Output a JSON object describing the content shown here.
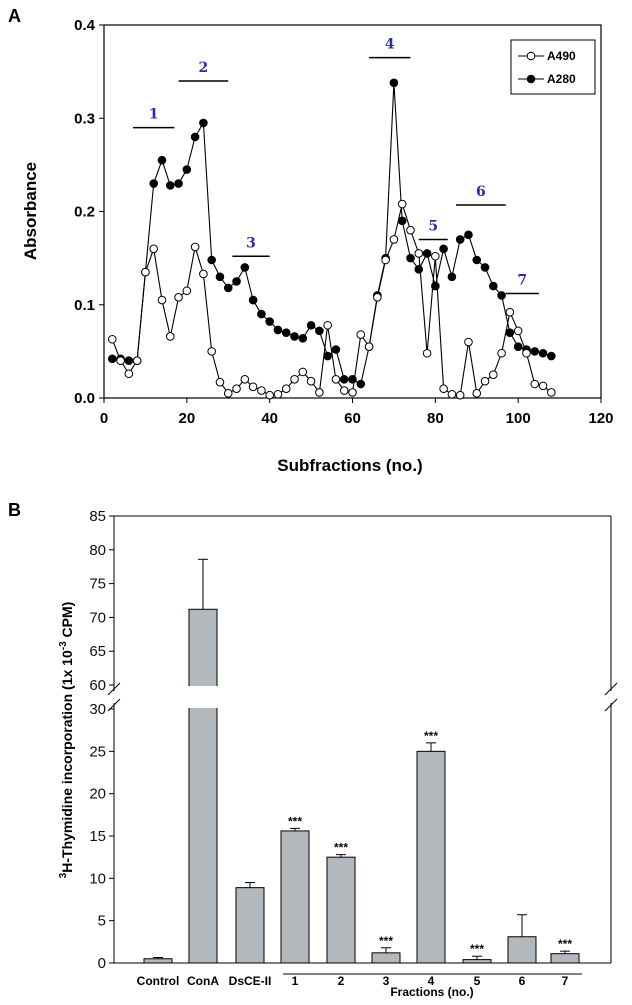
{
  "chart_data": [
    {
      "panel": "A",
      "type": "line",
      "xlabel": "Subfractions (no.)",
      "ylabel": "Absorbance",
      "xlim": [
        0,
        120
      ],
      "ylim": [
        0,
        0.4
      ],
      "xticks": [
        0,
        20,
        40,
        60,
        80,
        100,
        120
      ],
      "yticks": [
        "0.0",
        "0.1",
        "0.2",
        "0.3",
        "0.4"
      ],
      "legend_position": "top-right",
      "series": [
        {
          "name": "A490",
          "marker": "open-circle",
          "color": "#000000",
          "x": [
            2,
            4,
            6,
            8,
            10,
            12,
            14,
            16,
            18,
            20,
            22,
            24,
            26,
            28,
            30,
            32,
            34,
            36,
            38,
            40,
            42,
            44,
            46,
            48,
            50,
            52,
            54,
            56,
            58,
            60,
            62,
            64,
            66,
            68,
            70,
            72,
            74,
            76,
            78,
            80,
            82,
            84,
            86,
            88,
            90,
            92,
            94,
            96,
            98,
            100,
            102,
            104,
            106,
            108
          ],
          "y": [
            0.063,
            0.04,
            0.026,
            0.04,
            0.135,
            0.16,
            0.105,
            0.066,
            0.108,
            0.115,
            0.162,
            0.133,
            0.05,
            0.017,
            0.005,
            0.01,
            0.02,
            0.012,
            0.008,
            0.003,
            0.004,
            0.01,
            0.02,
            0.028,
            0.018,
            0.006,
            0.078,
            0.02,
            0.008,
            0.006,
            0.068,
            0.055,
            0.108,
            0.148,
            0.17,
            0.208,
            0.18,
            0.155,
            0.048,
            0.152,
            0.01,
            0.004,
            0.003,
            0.06,
            0.005,
            0.018,
            0.025,
            0.048,
            0.092,
            0.072,
            0.048,
            0.015,
            0.013,
            0.006
          ]
        },
        {
          "name": "A280",
          "marker": "filled-circle",
          "color": "#000000",
          "x": [
            2,
            4,
            6,
            8,
            10,
            12,
            14,
            16,
            18,
            20,
            22,
            24,
            26,
            28,
            30,
            32,
            34,
            36,
            38,
            40,
            42,
            44,
            46,
            48,
            50,
            52,
            54,
            56,
            58,
            60,
            62,
            64,
            66,
            68,
            70,
            72,
            74,
            76,
            78,
            80,
            82,
            84,
            86,
            88,
            90,
            92,
            94,
            96,
            98,
            100,
            102,
            104,
            106,
            108
          ],
          "y": [
            0.042,
            0.042,
            0.04,
            0.04,
            0.135,
            0.23,
            0.255,
            0.228,
            0.23,
            0.245,
            0.28,
            0.295,
            0.148,
            0.13,
            0.118,
            0.125,
            0.14,
            0.105,
            0.09,
            0.082,
            0.073,
            0.07,
            0.066,
            0.064,
            0.078,
            0.072,
            0.045,
            0.052,
            0.02,
            0.02,
            0.015,
            0.055,
            0.11,
            0.15,
            0.338,
            0.19,
            0.15,
            0.138,
            0.155,
            0.12,
            0.16,
            0.13,
            0.17,
            0.175,
            0.148,
            0.14,
            0.12,
            0.11,
            0.07,
            0.055,
            0.052,
            0.05,
            0.048,
            0.045
          ]
        }
      ],
      "annotations": [
        {
          "label": "1",
          "x_start": 7,
          "x_end": 17,
          "y": 0.29
        },
        {
          "label": "2",
          "x_start": 18,
          "x_end": 30,
          "y": 0.34
        },
        {
          "label": "3",
          "x_start": 31,
          "x_end": 40,
          "y": 0.152
        },
        {
          "label": "4",
          "x_start": 64,
          "x_end": 74,
          "y": 0.365
        },
        {
          "label": "5",
          "x_start": 76,
          "x_end": 83,
          "y": 0.17
        },
        {
          "label": "6",
          "x_start": 85,
          "x_end": 97,
          "y": 0.207
        },
        {
          "label": "7",
          "x_start": 97,
          "x_end": 105,
          "y": 0.112
        }
      ]
    },
    {
      "panel": "B",
      "type": "bar",
      "ylabel_prefix": "3",
      "ylabel_main": "H-Thymidine incorporation (1x 10",
      "ylabel_exp": "-3",
      "ylabel_suffix": " CPM)",
      "broken_axis": {
        "lower": [
          0,
          30
        ],
        "upper": [
          60,
          85
        ]
      },
      "yticks_lower": [
        "0",
        "5",
        "10",
        "15",
        "20",
        "25",
        "30"
      ],
      "yticks_upper": [
        "60",
        "65",
        "70",
        "75",
        "80",
        "85"
      ],
      "categories": [
        "Control",
        "ConA",
        "DsCE-II",
        "1",
        "2",
        "3",
        "4",
        "5",
        "6",
        "7"
      ],
      "values": [
        0.5,
        71.2,
        8.9,
        15.6,
        12.5,
        1.2,
        25.0,
        0.4,
        3.1,
        1.1
      ],
      "errors": [
        0.15,
        7.4,
        0.6,
        0.3,
        0.3,
        0.6,
        1.0,
        0.4,
        2.6,
        0.3
      ],
      "significance": [
        "",
        "",
        "",
        "***",
        "***",
        "***",
        "***",
        "***",
        "",
        "***"
      ],
      "bar_color": "#b3b8bd",
      "group_label": "Fractions (no.)"
    }
  ],
  "panels": {
    "a_letter": "A",
    "b_letter": "B"
  }
}
